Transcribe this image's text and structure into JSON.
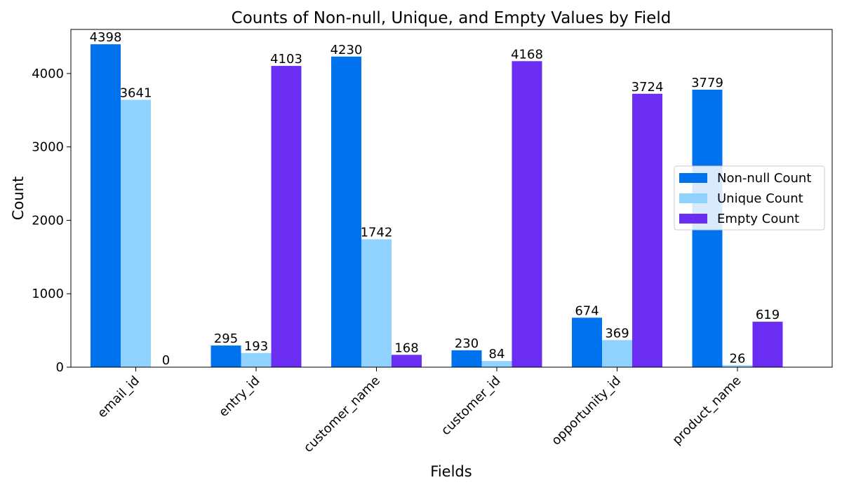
{
  "chart_data": {
    "type": "bar",
    "title": "Counts of Non-null, Unique, and Empty Values by Field",
    "xlabel": "Fields",
    "ylabel": "Count",
    "ylim": [
      0,
      4600
    ],
    "yticks": [
      0,
      1000,
      2000,
      3000,
      4000
    ],
    "grid": false,
    "legend_position": "right",
    "categories": [
      "email_id",
      "entry_id",
      "customer_name",
      "customer_id",
      "opportunity_id",
      "product_name"
    ],
    "series": [
      {
        "name": "Non-null Count",
        "color": "#0072EE",
        "values": [
          4398,
          295,
          4230,
          230,
          674,
          3779
        ]
      },
      {
        "name": "Unique Count",
        "color": "#8FD2FF",
        "values": [
          3641,
          193,
          1742,
          84,
          369,
          26
        ]
      },
      {
        "name": "Empty Count",
        "color": "#6C2DF2",
        "values": [
          0,
          4103,
          168,
          4168,
          3724,
          619
        ]
      }
    ]
  }
}
